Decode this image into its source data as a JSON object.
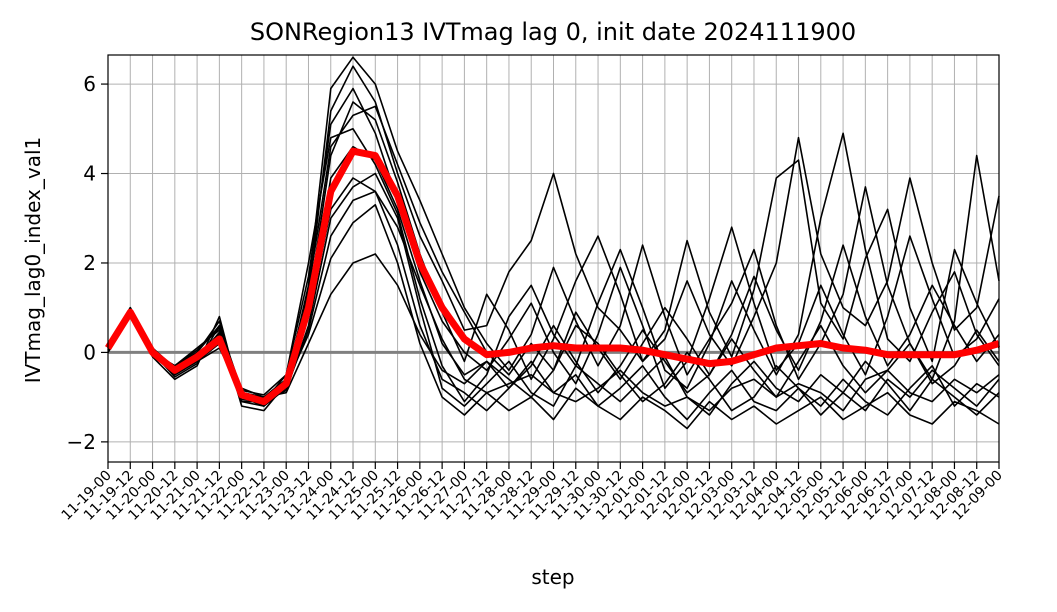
{
  "chart_data": {
    "type": "line",
    "title": "SONRegion13 IVTmag lag 0, init date 2024111900",
    "xlabel": "step",
    "ylabel": "IVTmag_lag0_index_val1",
    "ylim": [
      -2.45,
      6.65
    ],
    "yticks": [
      -2,
      0,
      2,
      4,
      6
    ],
    "ytick_labels": [
      "−2",
      "0",
      "2",
      "4",
      "6"
    ],
    "grid": true,
    "zero_line": 0,
    "x": [
      "11-19-00",
      "11-19-12",
      "11-20-00",
      "11-20-12",
      "11-21-00",
      "11-21-12",
      "11-22-00",
      "11-22-12",
      "11-23-00",
      "11-23-12",
      "11-24-00",
      "11-24-12",
      "11-25-00",
      "11-25-12",
      "11-26-00",
      "11-26-12",
      "11-27-00",
      "11-27-12",
      "11-28-00",
      "11-28-12",
      "11-29-00",
      "11-29-12",
      "11-30-00",
      "11-30-12",
      "12-01-00",
      "12-01-12",
      "12-02-00",
      "12-02-12",
      "12-03-00",
      "12-03-12",
      "12-04-00",
      "12-04-12",
      "12-05-00",
      "12-05-12",
      "12-06-00",
      "12-06-12",
      "12-07-00",
      "12-07-12",
      "12-08-00",
      "12-08-12",
      "12-09-00"
    ],
    "series": [
      {
        "role": "ensemble-mean",
        "color": "#ff0000",
        "values": [
          0.1,
          0.9,
          0.0,
          -0.4,
          -0.1,
          0.3,
          -0.95,
          -1.1,
          -0.7,
          1.0,
          3.6,
          4.5,
          4.4,
          3.5,
          2.0,
          1.0,
          0.3,
          -0.05,
          0.0,
          0.1,
          0.15,
          0.1,
          0.1,
          0.1,
          0.05,
          -0.05,
          -0.15,
          -0.25,
          -0.2,
          -0.05,
          0.1,
          0.15,
          0.2,
          0.1,
          0.05,
          -0.05,
          -0.05,
          -0.05,
          -0.05,
          0.05,
          0.2
        ]
      },
      {
        "role": "ensemble-member",
        "color": "#000000",
        "values": [
          0.1,
          1.0,
          0.0,
          -0.3,
          0.0,
          0.6,
          -0.9,
          -1.0,
          -0.6,
          1.3,
          5.4,
          6.4,
          5.6,
          4.0,
          2.6,
          1.6,
          0.5,
          0.6,
          1.8,
          2.5,
          4.0,
          2.2,
          1.0,
          0.5,
          -0.2,
          0.3,
          1.6,
          0.4,
          -0.3,
          0.8,
          2.0,
          4.8,
          2.2,
          1.0,
          0.6,
          1.6,
          3.9,
          2.0,
          0.5,
          1.0,
          3.5
        ]
      },
      {
        "role": "ensemble-member",
        "color": "#000000",
        "values": [
          0.2,
          0.9,
          0.1,
          -0.5,
          -0.2,
          0.2,
          -1.0,
          -1.2,
          -0.8,
          0.5,
          2.6,
          3.4,
          3.6,
          2.8,
          1.5,
          0.3,
          -0.6,
          -0.9,
          -0.7,
          -0.5,
          -0.9,
          -1.1,
          -0.8,
          -0.4,
          -0.9,
          -1.2,
          -1.0,
          -1.3,
          -0.8,
          -0.6,
          -1.0,
          -0.7,
          -0.9,
          -1.3,
          -0.6,
          -0.4,
          -0.9,
          -1.1,
          -0.6,
          -0.9,
          -0.5
        ]
      },
      {
        "role": "ensemble-member",
        "color": "#000000",
        "values": [
          0.0,
          0.8,
          -0.1,
          -0.6,
          -0.3,
          0.8,
          -1.1,
          -1.1,
          -0.5,
          2.0,
          4.8,
          5.0,
          4.2,
          3.1,
          1.2,
          -0.3,
          -1.1,
          -0.5,
          0.8,
          1.5,
          0.4,
          -0.3,
          1.1,
          2.3,
          1.0,
          -0.4,
          -0.8,
          0.2,
          1.6,
          0.5,
          -0.5,
          0.4,
          3.0,
          4.9,
          2.3,
          0.3,
          -0.2,
          0.9,
          1.8,
          0.4,
          -0.3
        ]
      },
      {
        "role": "ensemble-member",
        "color": "#000000",
        "values": [
          0.1,
          0.95,
          0.05,
          -0.4,
          -0.1,
          0.4,
          -0.8,
          -1.0,
          -0.9,
          0.2,
          1.3,
          2.0,
          2.2,
          1.5,
          0.4,
          -0.4,
          -0.7,
          -0.2,
          -0.6,
          -1.0,
          -0.4,
          0.6,
          0.2,
          -0.5,
          -1.1,
          -0.7,
          0.0,
          -0.6,
          -1.3,
          -1.0,
          -0.3,
          -0.8,
          -1.4,
          -0.9,
          -0.2,
          -0.7,
          -1.3,
          -0.6,
          -1.0,
          -1.4,
          -0.9
        ]
      },
      {
        "role": "ensemble-member",
        "color": "#000000",
        "values": [
          0.15,
          0.85,
          0.0,
          -0.3,
          0.1,
          0.5,
          -1.2,
          -1.3,
          -0.7,
          1.5,
          5.9,
          6.6,
          6.0,
          4.5,
          3.4,
          2.2,
          1.0,
          0.2,
          -0.4,
          0.4,
          1.9,
          0.7,
          -0.3,
          0.6,
          2.4,
          0.8,
          -0.5,
          0.3,
          1.1,
          2.3,
          0.6,
          -0.6,
          0.2,
          1.3,
          3.7,
          1.5,
          0.2,
          -0.6,
          0.7,
          4.4,
          1.6
        ]
      },
      {
        "role": "ensemble-member",
        "color": "#000000",
        "values": [
          0.05,
          1.0,
          0.05,
          -0.5,
          -0.2,
          0.1,
          -0.9,
          -1.0,
          -0.8,
          0.8,
          3.2,
          3.9,
          3.6,
          2.4,
          0.6,
          -0.6,
          -0.9,
          -1.3,
          -0.8,
          -0.2,
          -0.9,
          -0.5,
          -1.2,
          -0.8,
          -0.3,
          -1.0,
          -1.5,
          -0.9,
          -0.4,
          -1.1,
          -1.3,
          -0.8,
          -1.2,
          -0.6,
          -1.1,
          -1.4,
          -0.8,
          -0.3,
          -1.2,
          -0.7,
          -1.0
        ]
      },
      {
        "role": "ensemble-member",
        "color": "#000000",
        "values": [
          0.1,
          0.9,
          -0.05,
          -0.45,
          0.0,
          0.7,
          -1.0,
          -1.1,
          -0.6,
          1.1,
          4.4,
          5.6,
          5.2,
          3.8,
          2.2,
          0.9,
          -0.2,
          1.3,
          0.5,
          -0.6,
          0.3,
          1.6,
          2.6,
          1.3,
          -0.2,
          0.5,
          2.5,
          0.9,
          -0.1,
          1.4,
          3.9,
          4.3,
          1.1,
          0.3,
          2.1,
          3.2,
          1.0,
          -0.2,
          2.3,
          1.1,
          0.1
        ]
      },
      {
        "role": "ensemble-member",
        "color": "#000000",
        "values": [
          0.2,
          0.8,
          0.1,
          -0.35,
          -0.1,
          0.3,
          -1.1,
          -1.2,
          -0.7,
          0.4,
          2.1,
          2.9,
          3.3,
          2.0,
          0.2,
          -1.0,
          -1.4,
          -0.9,
          -1.3,
          -1.0,
          -1.5,
          -0.8,
          -1.2,
          -1.5,
          -1.0,
          -1.3,
          -1.7,
          -1.1,
          -1.5,
          -1.2,
          -1.6,
          -1.3,
          -1.0,
          -1.5,
          -1.2,
          -0.9,
          -1.4,
          -1.6,
          -1.1,
          -1.3,
          -1.6
        ]
      },
      {
        "role": "ensemble-member",
        "color": "#000000",
        "values": [
          0.0,
          0.95,
          0.0,
          -0.55,
          -0.25,
          0.6,
          -0.85,
          -0.95,
          -0.5,
          1.7,
          5.1,
          5.9,
          4.9,
          3.4,
          1.8,
          0.7,
          0.0,
          -0.4,
          0.3,
          1.1,
          0.0,
          -0.7,
          0.4,
          1.9,
          0.6,
          -0.8,
          -0.2,
          1.2,
          2.8,
          1.1,
          -0.4,
          0.2,
          1.5,
          0.4,
          -0.5,
          0.8,
          2.6,
          1.2,
          -0.1,
          0.3,
          1.2
        ]
      },
      {
        "role": "ensemble-member",
        "color": "#000000",
        "values": [
          0.1,
          0.9,
          0.05,
          -0.4,
          -0.15,
          0.45,
          -1.0,
          -1.05,
          -0.75,
          0.9,
          3.9,
          4.6,
          4.3,
          3.2,
          1.6,
          0.2,
          -0.5,
          -0.2,
          -0.8,
          -0.3,
          0.6,
          -0.2,
          -0.9,
          -0.3,
          0.5,
          -0.2,
          -0.9,
          -0.5,
          0.3,
          -0.4,
          -1.0,
          -0.2,
          0.6,
          -0.3,
          -0.9,
          -0.4,
          0.2,
          -0.7,
          -0.3,
          0.5,
          -0.2
        ]
      },
      {
        "role": "ensemble-member",
        "color": "#000000",
        "values": [
          0.15,
          1.0,
          0.0,
          -0.3,
          0.05,
          0.55,
          -0.95,
          -1.15,
          -0.6,
          1.4,
          4.6,
          5.3,
          5.5,
          4.2,
          2.9,
          1.8,
          0.9,
          0.0,
          -0.5,
          0.2,
          -0.4,
          0.9,
          0.1,
          -0.6,
          0.2,
          1.0,
          0.3,
          -0.5,
          0.4,
          1.7,
          0.5,
          -0.4,
          0.7,
          2.4,
          0.8,
          -0.3,
          0.4,
          1.5,
          0.6,
          -0.2,
          0.4
        ]
      },
      {
        "role": "ensemble-member",
        "color": "#000000",
        "values": [
          0.05,
          0.85,
          -0.05,
          -0.5,
          -0.2,
          0.25,
          -1.05,
          -1.1,
          -0.85,
          0.6,
          3.0,
          3.7,
          4.0,
          3.0,
          1.0,
          -0.8,
          -1.2,
          -0.7,
          -0.2,
          -0.9,
          -1.2,
          -0.3,
          -0.7,
          -1.1,
          -0.6,
          -0.1,
          -1.0,
          -1.4,
          -0.7,
          -0.2,
          -0.8,
          -1.1,
          -0.5,
          -0.9,
          -1.3,
          -0.6,
          -1.0,
          -0.4,
          -0.8,
          -1.2,
          -0.6
        ]
      }
    ]
  }
}
